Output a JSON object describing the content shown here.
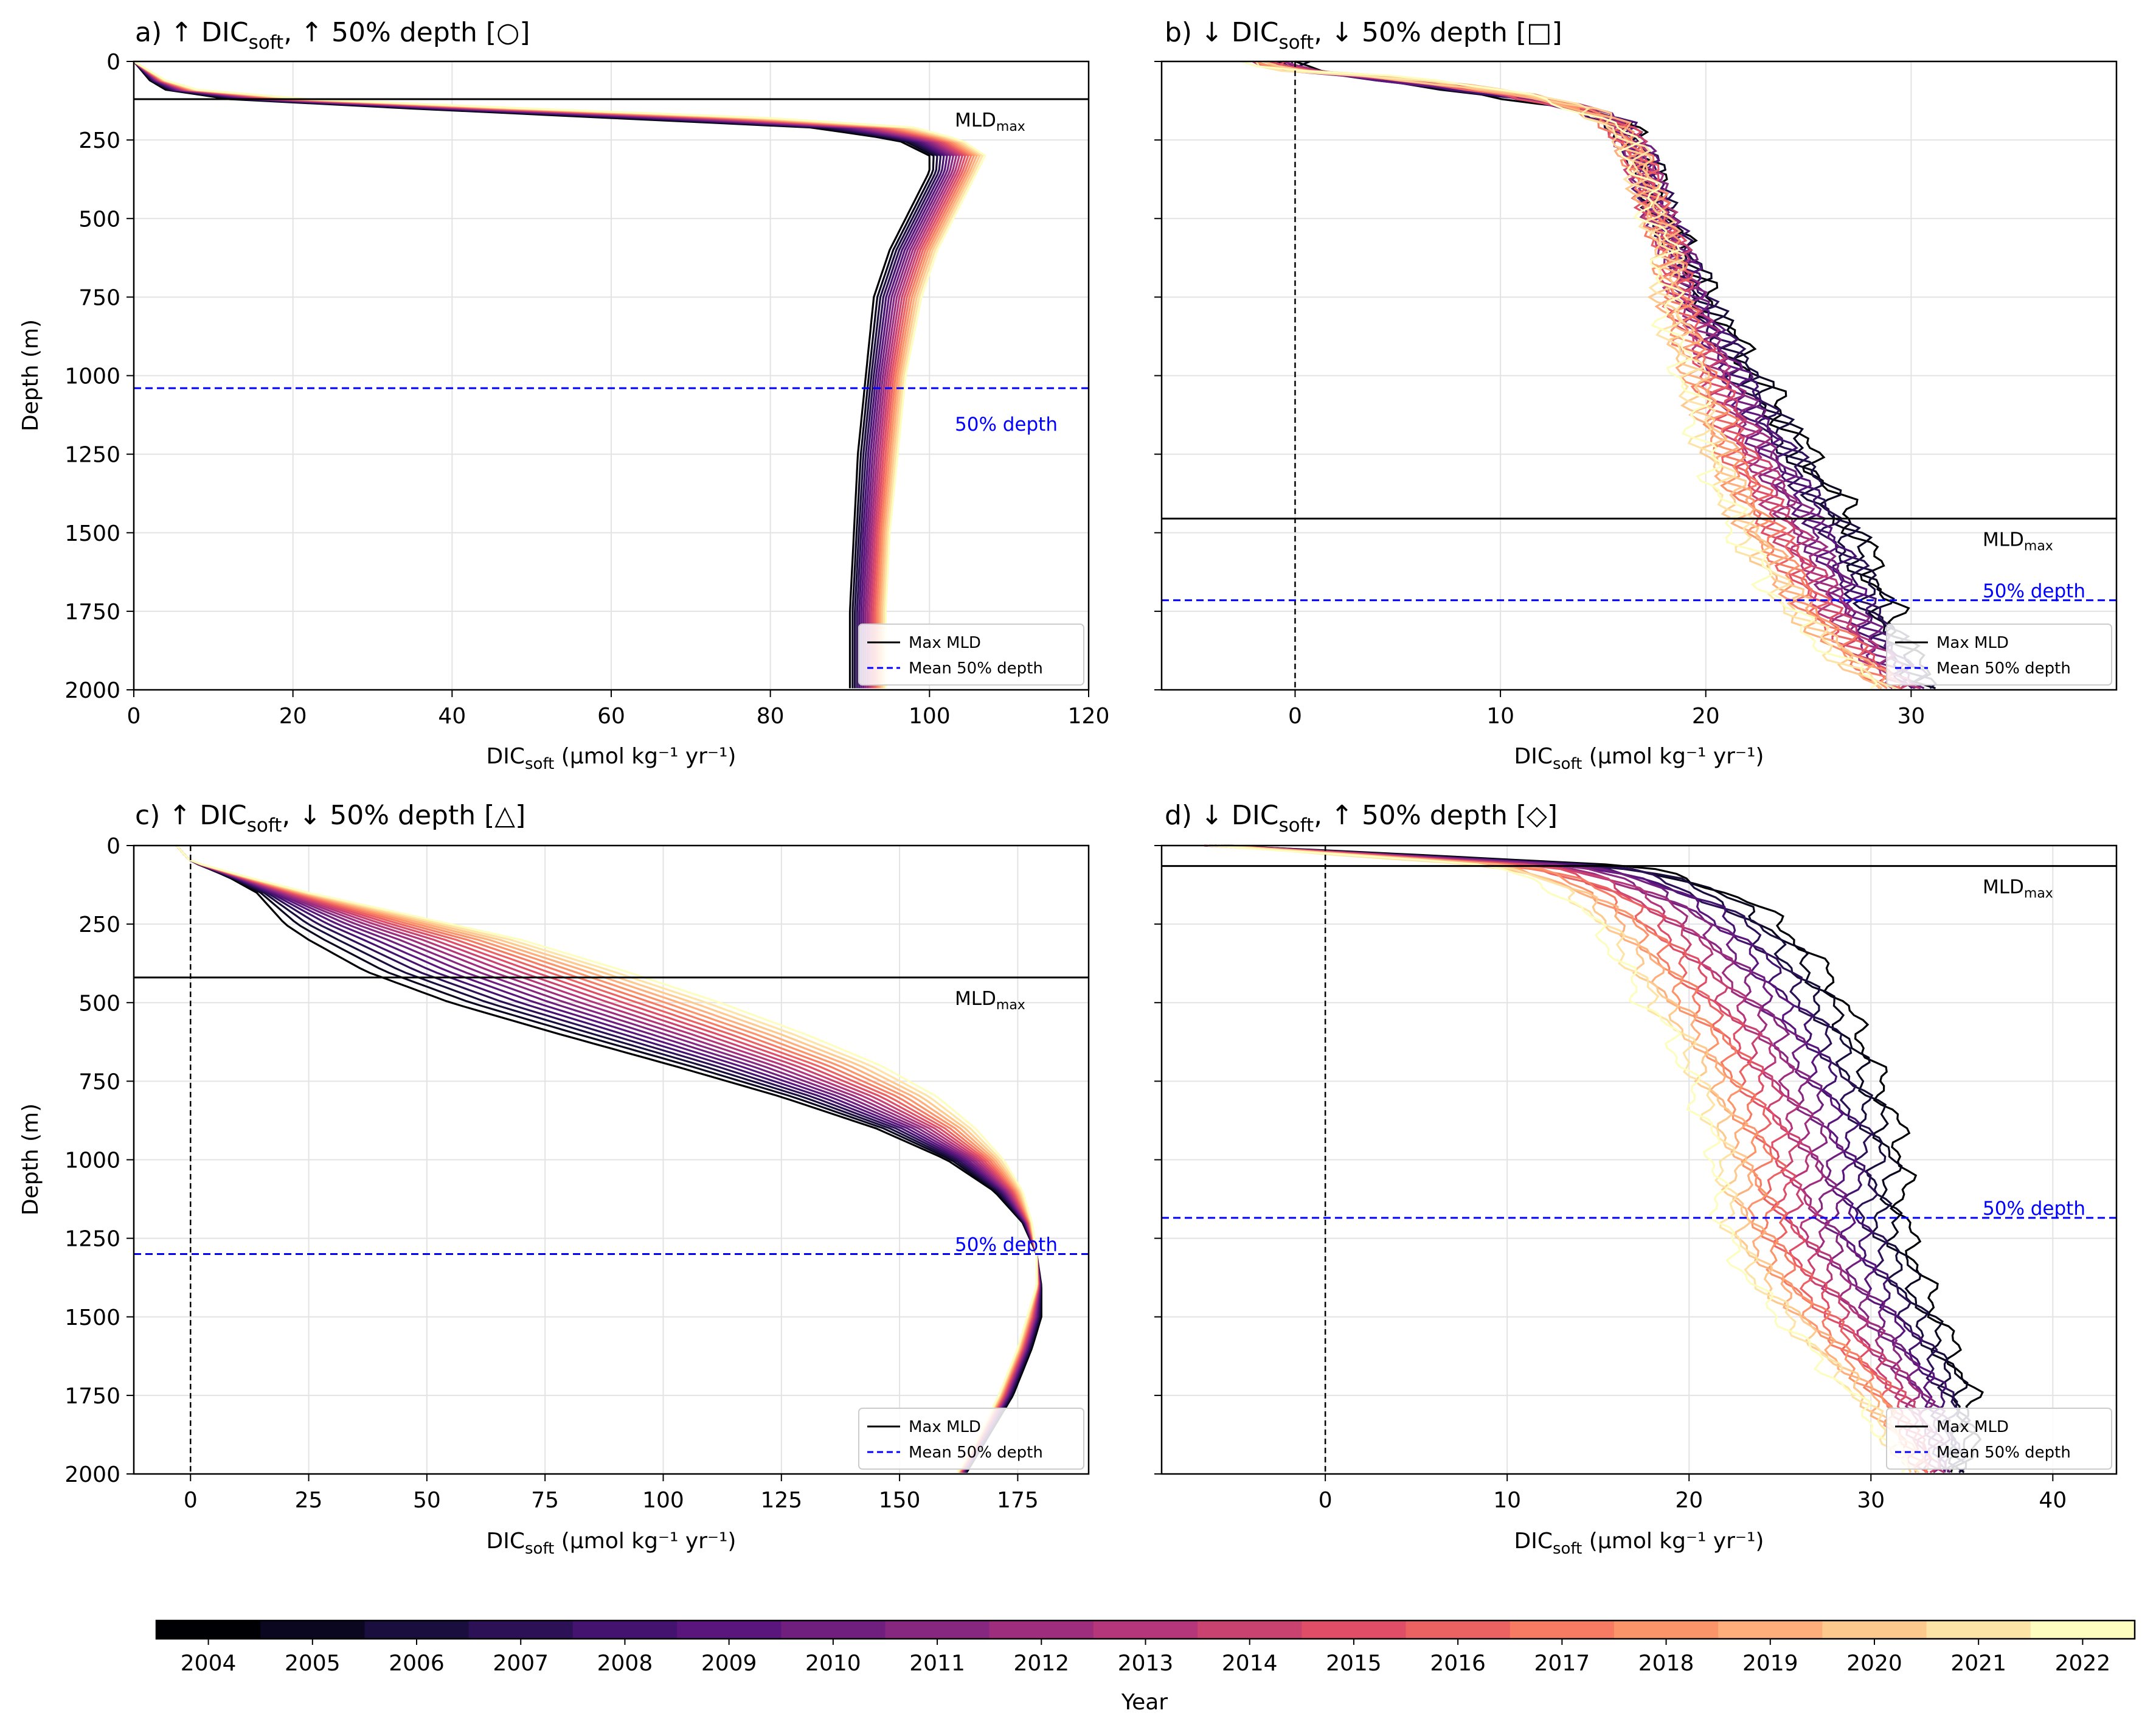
{
  "colorbar": {
    "label": "Year",
    "years": [
      "2004",
      "2005",
      "2006",
      "2007",
      "2008",
      "2009",
      "2010",
      "2011",
      "2012",
      "2013",
      "2014",
      "2015",
      "2016",
      "2017",
      "2018",
      "2019",
      "2020",
      "2021",
      "2022"
    ],
    "colors": [
      "#000004",
      "#0b0924",
      "#231151",
      "#410f75",
      "#5f187f",
      "#7b2382",
      "#982d80",
      "#b73779",
      "#d3436e",
      "#eb5760",
      "#f8765c",
      "#fd9969",
      "#febb81",
      "#fddea0",
      "#fcfdbf",
      "#fcfdbf",
      "#fcfdbf",
      "#fcfdbf",
      "#fcfdbf"
    ]
  },
  "legend": {
    "mld": "Max MLD",
    "half": "Mean 50% depth"
  },
  "chart_data": [
    {
      "id": "a",
      "type": "line",
      "title": "a) ↑ DIC",
      "title_sub": "soft",
      "title_rest": ", ↑ 50% depth [○]",
      "xlabel": "DIC",
      "xlabel_sub": "soft",
      "xlabel_rest": " (μmol kg⁻¹ yr⁻¹)",
      "ylabel": "Depth (m)",
      "xlim": [
        0,
        120
      ],
      "ylim": [
        2000,
        0
      ],
      "xticks": [
        0,
        20,
        40,
        60,
        80,
        100,
        120
      ],
      "yticks": [
        0,
        250,
        500,
        750,
        1000,
        1250,
        1500,
        1750,
        2000
      ],
      "mld_max": 120,
      "mld_label": "MLD",
      "mld_label_sub": "max",
      "half_depth": 1040,
      "half_label": "50% depth",
      "zero_line": false,
      "grid": true,
      "legend_position": "lower right",
      "profile": {
        "depths": [
          0,
          30,
          60,
          90,
          120,
          150,
          180,
          210,
          250,
          300,
          350,
          400,
          500,
          600,
          750,
          1000,
          1250,
          1500,
          1750,
          2000
        ],
        "early": [
          0,
          1,
          2,
          4,
          12,
          35,
          60,
          85,
          96,
          100,
          100,
          99,
          97,
          95,
          93,
          92,
          91,
          90.5,
          90,
          90
        ],
        "late": [
          0,
          2,
          4,
          8,
          22,
          50,
          80,
          98,
          104,
          107,
          106,
          105,
          103,
          101,
          99,
          97,
          96,
          95,
          94.5,
          94.5
        ],
        "noise": 0
      }
    },
    {
      "id": "b",
      "type": "line",
      "title": "b) ↓ DIC",
      "title_sub": "soft",
      "title_rest": ", ↓ 50% depth [□]",
      "xlabel": "DIC",
      "xlabel_sub": "soft",
      "xlabel_rest": " (μmol kg⁻¹ yr⁻¹)",
      "ylabel": "",
      "xlim": [
        -6.5,
        40
      ],
      "ylim": [
        2000,
        0
      ],
      "xticks": [
        0,
        10,
        20,
        30
      ],
      "yticks": [
        0,
        250,
        500,
        750,
        1000,
        1250,
        1500,
        1750,
        2000
      ],
      "mld_max": 1455,
      "mld_label": "MLD",
      "mld_label_sub": "max",
      "half_depth": 1715,
      "half_label": "50% depth",
      "zero_line": true,
      "grid": true,
      "legend_position": "lower right",
      "profile": {
        "depths": [
          0,
          25,
          50,
          100,
          150,
          200,
          300,
          400,
          500,
          600,
          750,
          900,
          1000,
          1250,
          1500,
          1750,
          1900,
          2000
        ],
        "early": [
          0,
          0,
          3,
          9,
          14,
          16,
          17,
          17.5,
          18,
          19,
          20,
          21.5,
          22.5,
          25,
          27.5,
          29,
          30,
          31
        ],
        "late": [
          -2,
          -1,
          5,
          11,
          14,
          15.5,
          16.5,
          17,
          17.5,
          18,
          18,
          18.5,
          19,
          20,
          21.5,
          24,
          26.5,
          28.5
        ],
        "noise": 0.6
      }
    },
    {
      "id": "c",
      "type": "line",
      "title": "c) ↑ DIC",
      "title_sub": "soft",
      "title_rest": ", ↓ 50% depth [△]",
      "xlabel": "DIC",
      "xlabel_sub": "soft",
      "xlabel_rest": " (μmol kg⁻¹ yr⁻¹)",
      "ylabel": "Depth (m)",
      "xlim": [
        -12,
        190
      ],
      "ylim": [
        2000,
        0
      ],
      "xticks": [
        0,
        25,
        50,
        75,
        100,
        125,
        150,
        175
      ],
      "yticks": [
        0,
        250,
        500,
        750,
        1000,
        1250,
        1500,
        1750,
        2000
      ],
      "mld_max": 420,
      "mld_label": "MLD",
      "mld_label_sub": "max",
      "half_depth": 1300,
      "half_label": "50% depth",
      "zero_line": true,
      "grid": true,
      "legend_position": "lower right",
      "profile": {
        "depths": [
          0,
          50,
          100,
          150,
          200,
          250,
          300,
          400,
          500,
          600,
          700,
          800,
          900,
          1000,
          1100,
          1200,
          1300,
          1400,
          1500,
          1600,
          1750,
          1900,
          2000
        ],
        "early": [
          -3,
          0,
          8,
          14,
          17,
          20,
          25,
          37,
          55,
          78,
          102,
          125,
          145,
          160,
          170,
          176,
          179,
          180,
          180,
          178,
          174,
          168,
          164
        ],
        "late": [
          -3,
          0,
          12,
          25,
          40,
          55,
          70,
          92,
          112,
          130,
          146,
          158,
          166,
          172,
          176,
          178,
          179,
          179,
          177,
          175,
          171,
          166,
          162
        ],
        "noise": 0
      }
    },
    {
      "id": "d",
      "type": "line",
      "title": "d) ↓ DIC",
      "title_sub": "soft",
      "title_rest": ", ↑ 50% depth [◇]",
      "xlabel": "DIC",
      "xlabel_sub": "soft",
      "xlabel_rest": " (μmol kg⁻¹ yr⁻¹)",
      "ylabel": "",
      "xlim": [
        -9,
        43.5
      ],
      "ylim": [
        2000,
        0
      ],
      "xticks": [
        0,
        10,
        20,
        30,
        40
      ],
      "yticks": [
        0,
        250,
        500,
        750,
        1000,
        1250,
        1500,
        1750,
        2000
      ],
      "mld_max": 65,
      "mld_label": "MLD",
      "mld_label_sub": "max",
      "half_depth": 1185,
      "half_label": "50% depth",
      "zero_line": true,
      "grid": true,
      "legend_position": "lower right",
      "profile": {
        "depths": [
          0,
          25,
          65,
          100,
          150,
          200,
          300,
          400,
          500,
          600,
          750,
          900,
          1000,
          1100,
          1200,
          1300,
          1400,
          1500,
          1600,
          1750,
          1900,
          2000
        ],
        "early": [
          -6,
          3,
          17,
          20,
          22,
          24,
          26,
          27.5,
          28.5,
          29.5,
          30.5,
          31.5,
          31.8,
          31.8,
          31.8,
          32.5,
          33,
          33.8,
          34.5,
          35.5,
          35.5,
          35
        ],
        "late": [
          -6,
          0,
          9,
          11,
          13,
          14,
          15.5,
          16.5,
          17.5,
          19,
          20,
          21,
          21.5,
          21.5,
          21.8,
          22.5,
          23.5,
          25,
          26.5,
          29,
          31,
          32
        ],
        "noise": 0.45
      }
    }
  ]
}
